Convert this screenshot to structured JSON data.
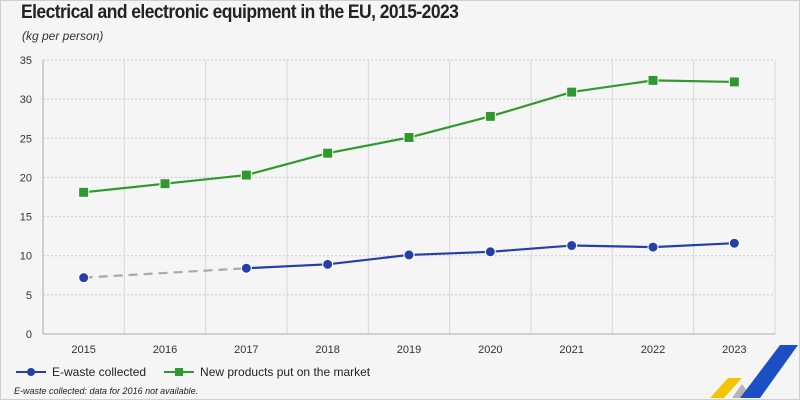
{
  "chart_data": {
    "type": "line",
    "title": "Electrical and electronic equipment in the EU, 2015-2023",
    "subtitle": "(kg per person)",
    "categories": [
      "2015",
      "2016",
      "2017",
      "2018",
      "2019",
      "2020",
      "2021",
      "2022",
      "2023"
    ],
    "ylim": [
      0,
      35
    ],
    "yticks": [
      "0",
      "5",
      "10",
      "15",
      "20",
      "25",
      "30",
      "35"
    ],
    "grid": true,
    "legend_position": "bottom-left",
    "series": [
      {
        "name": "E-waste collected",
        "color": "#2440a8",
        "marker": "circle",
        "values": [
          7.2,
          null,
          8.4,
          8.9,
          10.1,
          10.5,
          11.3,
          11.1,
          11.6
        ]
      },
      {
        "name": "New products put on the market",
        "color": "#2e9a2e",
        "marker": "square",
        "values": [
          18.1,
          19.2,
          20.3,
          23.1,
          25.1,
          27.8,
          30.9,
          32.4,
          32.2
        ]
      }
    ],
    "gap_color": "#a8a8ad",
    "note": "E-waste collected: data for 2016 not available."
  }
}
